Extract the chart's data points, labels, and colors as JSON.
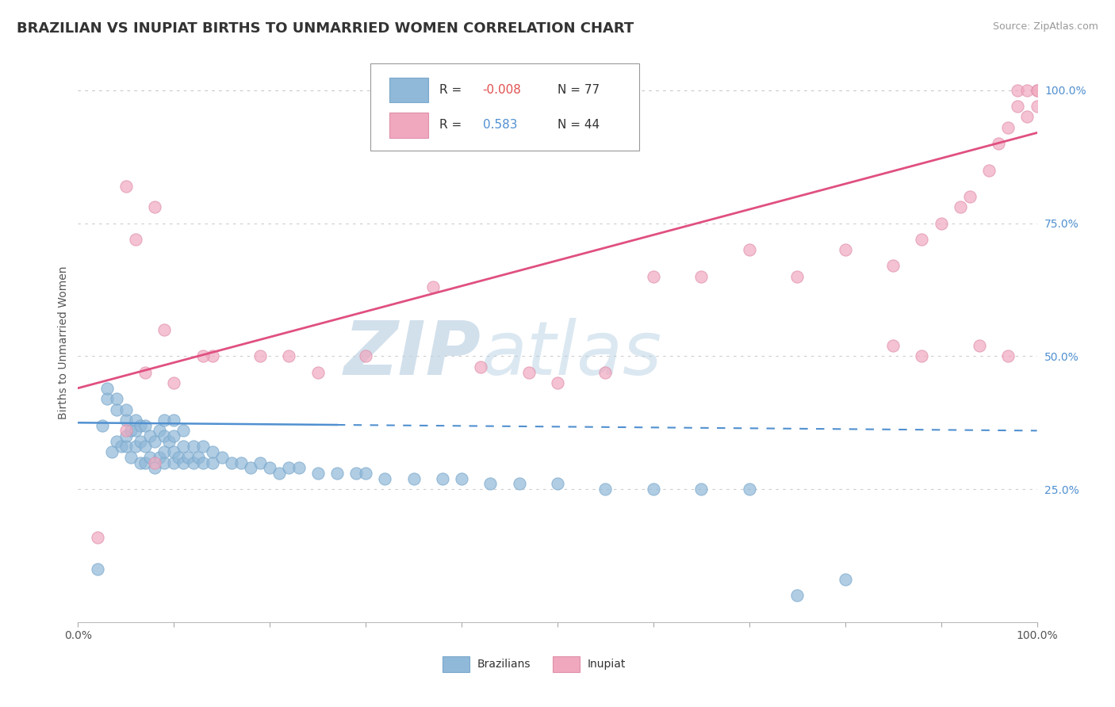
{
  "title": "BRAZILIAN VS INUPIAT BIRTHS TO UNMARRIED WOMEN CORRELATION CHART",
  "source": "Source: ZipAtlas.com",
  "ylabel": "Births to Unmarried Women",
  "watermark_zip": "ZIP",
  "watermark_atlas": "atlas",
  "blue_color": "#90b8d8",
  "blue_edge_color": "#7aa8cc",
  "pink_color": "#f0a8bf",
  "pink_edge_color": "#e090aa",
  "blue_trend_color": "#5090d0",
  "pink_trend_color": "#e05080",
  "background_color": "#ffffff",
  "grid_color": "#cccccc",
  "right_tick_color": "#5090d0",
  "xlim": [
    0.0,
    1.0
  ],
  "ylim": [
    0.0,
    1.05
  ],
  "right_yticks": [
    0.25,
    0.5,
    0.75,
    1.0
  ],
  "right_yticklabels": [
    "25.0%",
    "50.0%",
    "75.0%",
    "100.0%"
  ],
  "blue_scatter_x": [
    0.02,
    0.025,
    0.03,
    0.03,
    0.035,
    0.04,
    0.04,
    0.04,
    0.045,
    0.05,
    0.05,
    0.05,
    0.05,
    0.055,
    0.055,
    0.06,
    0.06,
    0.06,
    0.065,
    0.065,
    0.065,
    0.07,
    0.07,
    0.07,
    0.075,
    0.075,
    0.08,
    0.08,
    0.085,
    0.085,
    0.09,
    0.09,
    0.09,
    0.09,
    0.095,
    0.1,
    0.1,
    0.1,
    0.1,
    0.105,
    0.11,
    0.11,
    0.11,
    0.115,
    0.12,
    0.12,
    0.125,
    0.13,
    0.13,
    0.14,
    0.14,
    0.15,
    0.16,
    0.17,
    0.18,
    0.19,
    0.2,
    0.21,
    0.22,
    0.23,
    0.25,
    0.27,
    0.29,
    0.3,
    0.32,
    0.35,
    0.38,
    0.4,
    0.43,
    0.46,
    0.5,
    0.55,
    0.6,
    0.65,
    0.7,
    0.75,
    0.8
  ],
  "blue_scatter_y": [
    0.1,
    0.37,
    0.42,
    0.44,
    0.32,
    0.34,
    0.4,
    0.42,
    0.33,
    0.33,
    0.35,
    0.38,
    0.4,
    0.31,
    0.36,
    0.33,
    0.36,
    0.38,
    0.3,
    0.34,
    0.37,
    0.3,
    0.33,
    0.37,
    0.31,
    0.35,
    0.29,
    0.34,
    0.31,
    0.36,
    0.3,
    0.32,
    0.35,
    0.38,
    0.34,
    0.3,
    0.32,
    0.35,
    0.38,
    0.31,
    0.3,
    0.33,
    0.36,
    0.31,
    0.3,
    0.33,
    0.31,
    0.3,
    0.33,
    0.3,
    0.32,
    0.31,
    0.3,
    0.3,
    0.29,
    0.3,
    0.29,
    0.28,
    0.29,
    0.29,
    0.28,
    0.28,
    0.28,
    0.28,
    0.27,
    0.27,
    0.27,
    0.27,
    0.26,
    0.26,
    0.26,
    0.25,
    0.25,
    0.25,
    0.25,
    0.05,
    0.08
  ],
  "pink_scatter_x": [
    0.02,
    0.05,
    0.07,
    0.08,
    0.09,
    0.1,
    0.14,
    0.19,
    0.22,
    0.3,
    0.37,
    0.5,
    0.55,
    0.6,
    0.65,
    0.7,
    0.75,
    0.8,
    0.85,
    0.88,
    0.9,
    0.92,
    0.93,
    0.95,
    0.96,
    0.97,
    0.98,
    0.98,
    0.99,
    0.99,
    1.0,
    1.0,
    1.0,
    0.13,
    0.05,
    0.06,
    0.08,
    0.25,
    0.42,
    0.47,
    0.85,
    0.88,
    0.94,
    0.97
  ],
  "pink_scatter_y": [
    0.16,
    0.36,
    0.47,
    0.3,
    0.55,
    0.45,
    0.5,
    0.5,
    0.5,
    0.5,
    0.63,
    0.45,
    0.47,
    0.65,
    0.65,
    0.7,
    0.65,
    0.7,
    0.67,
    0.72,
    0.75,
    0.78,
    0.8,
    0.85,
    0.9,
    0.93,
    0.97,
    1.0,
    0.95,
    1.0,
    0.97,
    1.0,
    1.0,
    0.5,
    0.82,
    0.72,
    0.78,
    0.47,
    0.48,
    0.47,
    0.52,
    0.5,
    0.52,
    0.5
  ],
  "blue_trend_x": [
    0.0,
    1.0
  ],
  "blue_trend_y": [
    0.375,
    0.36
  ],
  "pink_trend_x": [
    0.0,
    1.0
  ],
  "pink_trend_y": [
    0.44,
    0.92
  ]
}
